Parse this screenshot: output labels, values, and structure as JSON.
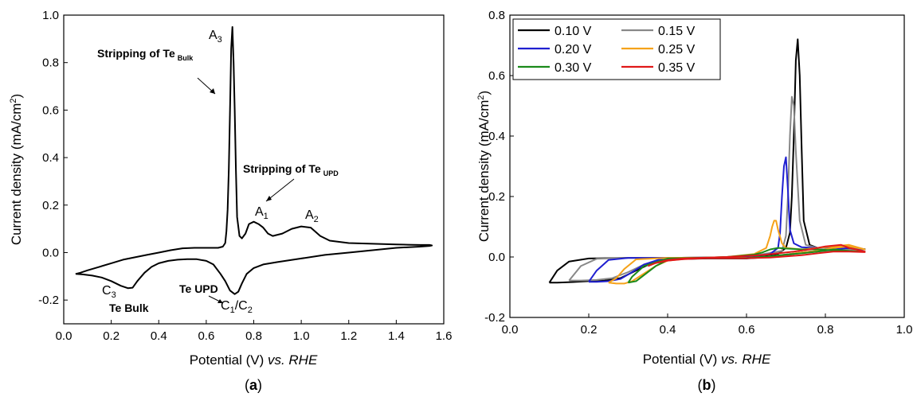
{
  "chart_data": [
    {
      "type": "line",
      "panel_label": {
        "open": "(",
        "letter": "a",
        "close": ")"
      },
      "xlabel": {
        "prefix": "Potential (V) ",
        "italic": "vs. RHE"
      },
      "ylabel": {
        "base": "Current density (mA/cm",
        "sup": "2",
        "close": ")"
      },
      "xlim": [
        0.0,
        1.6
      ],
      "ylim": [
        -0.3,
        1.0
      ],
      "xticks": [
        "0.0",
        "0.2",
        "0.4",
        "0.6",
        "0.8",
        "1.0",
        "1.2",
        "1.4",
        "1.6"
      ],
      "yticks": [
        "-0.2",
        "0.0",
        "0.2",
        "0.4",
        "0.6",
        "0.8",
        "1.0"
      ],
      "grid": false,
      "series": [
        {
          "color": "#000000",
          "x": [
            0.05,
            0.08,
            0.12,
            0.16,
            0.2,
            0.24,
            0.27,
            0.29,
            0.31,
            0.34,
            0.37,
            0.4,
            0.44,
            0.48,
            0.52,
            0.56,
            0.6,
            0.63,
            0.66,
            0.68,
            0.7,
            0.72,
            0.735,
            0.75,
            0.77,
            0.8,
            0.84,
            0.9,
            1.0,
            1.1,
            1.2,
            1.3,
            1.4,
            1.5,
            1.54,
            1.55,
            1.54,
            1.5,
            1.45,
            1.4,
            1.3,
            1.2,
            1.12,
            1.08,
            1.04,
            1.0,
            0.96,
            0.92,
            0.88,
            0.86,
            0.84,
            0.82,
            0.8,
            0.78,
            0.765,
            0.75,
            0.74,
            0.73,
            0.725,
            0.72,
            0.715,
            0.71,
            0.705,
            0.7,
            0.695,
            0.69,
            0.685,
            0.68,
            0.67,
            0.65,
            0.62,
            0.58,
            0.55,
            0.5,
            0.45,
            0.4,
            0.35,
            0.3,
            0.25,
            0.2,
            0.15,
            0.1,
            0.07,
            0.05
          ],
          "y": [
            -0.09,
            -0.092,
            -0.097,
            -0.105,
            -0.12,
            -0.14,
            -0.15,
            -0.148,
            -0.12,
            -0.085,
            -0.06,
            -0.045,
            -0.035,
            -0.03,
            -0.028,
            -0.028,
            -0.035,
            -0.05,
            -0.09,
            -0.12,
            -0.16,
            -0.175,
            -0.165,
            -0.13,
            -0.09,
            -0.065,
            -0.05,
            -0.04,
            -0.025,
            -0.01,
            0.0,
            0.01,
            0.02,
            0.025,
            0.028,
            0.03,
            0.032,
            0.032,
            0.033,
            0.034,
            0.037,
            0.04,
            0.05,
            0.07,
            0.105,
            0.11,
            0.1,
            0.08,
            0.07,
            0.08,
            0.105,
            0.12,
            0.13,
            0.12,
            0.08,
            0.06,
            0.07,
            0.15,
            0.35,
            0.6,
            0.8,
            0.95,
            0.86,
            0.6,
            0.35,
            0.18,
            0.09,
            0.04,
            0.025,
            0.02,
            0.02,
            0.02,
            0.02,
            0.018,
            0.01,
            0.0,
            -0.01,
            -0.02,
            -0.03,
            -0.045,
            -0.06,
            -0.075,
            -0.085,
            -0.09
          ]
        }
      ],
      "annotations": {
        "strip_bulk": {
          "main": "Stripping of Te",
          "sub": "Bulk"
        },
        "strip_upd": {
          "main": "Stripping of Te",
          "sub": "UPD"
        },
        "te_upd": "Te UPD",
        "te_bulk": "Te Bulk",
        "a3": {
          "main": "A",
          "sub": "3"
        },
        "a1": {
          "main": "A",
          "sub": "1"
        },
        "a2": {
          "main": "A",
          "sub": "2"
        },
        "c3": {
          "main": "C",
          "sub": "3"
        },
        "c1c2": {
          "c": "C",
          "s1": "1",
          "slash": "/C",
          "s2": "2"
        }
      }
    },
    {
      "type": "line",
      "panel_label": {
        "open": "(",
        "letter": "b",
        "close": ")"
      },
      "xlabel": {
        "prefix": "Potential (V) ",
        "italic": "vs. RHE"
      },
      "ylabel": {
        "base": "Current density (mA/cm",
        "sup": "2",
        "close": ")"
      },
      "xlim": [
        0.0,
        1.0
      ],
      "ylim": [
        -0.2,
        0.8
      ],
      "xticks": [
        "0.0",
        "0.2",
        "0.4",
        "0.6",
        "0.8",
        "1.0"
      ],
      "yticks": [
        "-0.2",
        "0.0",
        "0.2",
        "0.4",
        "0.6",
        "0.8"
      ],
      "grid": false,
      "legend": "top-left",
      "series": [
        {
          "name": "0.10 V",
          "color": "#000000",
          "x": [
            0.1,
            0.12,
            0.16,
            0.2,
            0.24,
            0.28,
            0.32,
            0.36,
            0.4,
            0.5,
            0.6,
            0.66,
            0.7,
            0.72,
            0.73,
            0.74,
            0.76,
            0.8,
            0.84,
            0.88,
            0.9,
            0.9,
            0.86,
            0.82,
            0.78,
            0.76,
            0.745,
            0.74,
            0.735,
            0.73,
            0.725,
            0.72,
            0.715,
            0.71,
            0.7,
            0.68,
            0.6,
            0.5,
            0.4,
            0.3,
            0.2,
            0.15,
            0.12,
            0.1
          ],
          "y": [
            -0.085,
            -0.085,
            -0.083,
            -0.08,
            -0.078,
            -0.07,
            -0.045,
            -0.02,
            -0.008,
            -0.005,
            -0.005,
            0.0,
            0.005,
            0.01,
            0.013,
            0.015,
            0.018,
            0.02,
            0.025,
            0.025,
            0.026,
            0.025,
            0.035,
            0.032,
            0.03,
            0.04,
            0.12,
            0.35,
            0.6,
            0.72,
            0.65,
            0.4,
            0.2,
            0.08,
            0.03,
            0.01,
            0.0,
            -0.002,
            -0.003,
            -0.003,
            -0.005,
            -0.015,
            -0.045,
            -0.085
          ]
        },
        {
          "name": "0.15 V",
          "color": "#888888",
          "x": [
            0.15,
            0.18,
            0.22,
            0.26,
            0.3,
            0.34,
            0.4,
            0.5,
            0.6,
            0.68,
            0.72,
            0.76,
            0.8,
            0.84,
            0.88,
            0.9,
            0.9,
            0.86,
            0.82,
            0.78,
            0.75,
            0.735,
            0.725,
            0.72,
            0.715,
            0.71,
            0.705,
            0.7,
            0.69,
            0.6,
            0.5,
            0.4,
            0.3,
            0.22,
            0.18,
            0.15
          ],
          "y": [
            -0.078,
            -0.078,
            -0.076,
            -0.07,
            -0.05,
            -0.025,
            -0.006,
            -0.004,
            -0.004,
            0.003,
            0.01,
            0.016,
            0.02,
            0.024,
            0.025,
            0.026,
            0.025,
            0.034,
            0.031,
            0.03,
            0.04,
            0.12,
            0.35,
            0.5,
            0.53,
            0.4,
            0.2,
            0.07,
            0.02,
            0.0,
            -0.002,
            -0.003,
            -0.003,
            -0.006,
            -0.03,
            -0.078
          ]
        },
        {
          "name": "0.20 V",
          "color": "#1f1fd0",
          "x": [
            0.2,
            0.22,
            0.25,
            0.28,
            0.31,
            0.34,
            0.38,
            0.44,
            0.5,
            0.6,
            0.66,
            0.7,
            0.74,
            0.78,
            0.82,
            0.86,
            0.9,
            0.9,
            0.86,
            0.82,
            0.78,
            0.74,
            0.72,
            0.71,
            0.705,
            0.7,
            0.695,
            0.69,
            0.685,
            0.68,
            0.66,
            0.6,
            0.5,
            0.4,
            0.3,
            0.25,
            0.22,
            0.2
          ],
          "y": [
            -0.082,
            -0.082,
            -0.08,
            -0.073,
            -0.05,
            -0.025,
            -0.008,
            -0.004,
            -0.004,
            -0.004,
            0.002,
            0.008,
            0.015,
            0.02,
            0.025,
            0.03,
            0.025,
            0.025,
            0.036,
            0.033,
            0.03,
            0.032,
            0.045,
            0.09,
            0.22,
            0.33,
            0.3,
            0.2,
            0.08,
            0.03,
            0.01,
            0.0,
            -0.002,
            -0.003,
            -0.003,
            -0.01,
            -0.045,
            -0.082
          ]
        },
        {
          "name": "0.25 V",
          "color": "#f5a21a",
          "x": [
            0.25,
            0.27,
            0.29,
            0.31,
            0.34,
            0.37,
            0.4,
            0.46,
            0.5,
            0.6,
            0.66,
            0.7,
            0.74,
            0.78,
            0.82,
            0.86,
            0.9,
            0.9,
            0.86,
            0.82,
            0.78,
            0.74,
            0.7,
            0.69,
            0.68,
            0.675,
            0.67,
            0.665,
            0.66,
            0.65,
            0.62,
            0.55,
            0.5,
            0.4,
            0.32,
            0.29,
            0.27,
            0.25
          ],
          "y": [
            -0.085,
            -0.088,
            -0.088,
            -0.08,
            -0.055,
            -0.03,
            -0.012,
            -0.004,
            -0.003,
            -0.003,
            0.002,
            0.008,
            0.015,
            0.02,
            0.03,
            0.035,
            0.025,
            0.025,
            0.04,
            0.035,
            0.03,
            0.025,
            0.03,
            0.045,
            0.09,
            0.12,
            0.12,
            0.1,
            0.07,
            0.03,
            0.01,
            0.0,
            -0.002,
            -0.003,
            -0.008,
            -0.04,
            -0.07,
            -0.085
          ]
        },
        {
          "name": "0.30 V",
          "color": "#1a8a1a",
          "x": [
            0.3,
            0.32,
            0.34,
            0.37,
            0.4,
            0.44,
            0.5,
            0.6,
            0.66,
            0.7,
            0.74,
            0.78,
            0.82,
            0.86,
            0.9,
            0.9,
            0.86,
            0.82,
            0.78,
            0.74,
            0.7,
            0.68,
            0.66,
            0.64,
            0.62,
            0.55,
            0.5,
            0.4,
            0.34,
            0.31,
            0.3
          ],
          "y": [
            -0.085,
            -0.08,
            -0.06,
            -0.03,
            -0.01,
            -0.005,
            -0.004,
            -0.003,
            0.002,
            0.008,
            0.012,
            0.018,
            0.025,
            0.02,
            0.018,
            0.018,
            0.02,
            0.022,
            0.025,
            0.025,
            0.028,
            0.03,
            0.025,
            0.015,
            0.008,
            0.0,
            -0.002,
            -0.005,
            -0.03,
            -0.065,
            -0.085
          ]
        },
        {
          "name": "0.35 V",
          "color": "#e01818",
          "x": [
            0.35,
            0.37,
            0.4,
            0.44,
            0.5,
            0.6,
            0.66,
            0.7,
            0.74,
            0.78,
            0.82,
            0.86,
            0.9,
            0.9,
            0.86,
            0.84,
            0.8,
            0.76,
            0.72,
            0.68,
            0.65,
            0.62,
            0.55,
            0.5,
            0.44,
            0.4,
            0.37,
            0.35
          ],
          "y": [
            -0.03,
            -0.02,
            -0.012,
            -0.007,
            -0.004,
            -0.004,
            -0.002,
            0.002,
            0.006,
            0.012,
            0.018,
            0.018,
            0.016,
            0.018,
            0.03,
            0.04,
            0.035,
            0.025,
            0.018,
            0.012,
            0.008,
            0.005,
            0.0,
            -0.002,
            -0.005,
            -0.01,
            -0.02,
            -0.03
          ]
        }
      ]
    }
  ]
}
